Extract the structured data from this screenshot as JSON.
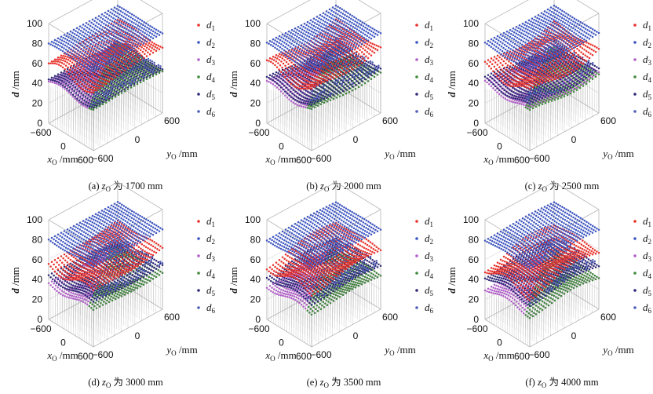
{
  "figure": {
    "panels": [
      {
        "label": "(a)",
        "z_text": "为 1700 mm",
        "z_value": 1700
      },
      {
        "label": "(b)",
        "z_text": "为 2000 mm",
        "z_value": 2000
      },
      {
        "label": "(c)",
        "z_text": "为 2500 mm",
        "z_value": 2500
      },
      {
        "label": "(d)",
        "z_text": "为 3000 mm",
        "z_value": 3000
      },
      {
        "label": "(e)",
        "z_text": "为 3500 mm",
        "z_value": 3500
      },
      {
        "label": "(f)",
        "z_text": "为 4000 mm",
        "z_value": 4000
      }
    ],
    "z_var": "z",
    "z_sub": "O"
  },
  "chart_data": {
    "type": "scatter",
    "plot": "3d",
    "x_axis": {
      "var": "x",
      "sub": "O",
      "unit": "/mm",
      "ticks": [
        "−600",
        "0",
        "600"
      ],
      "range": [
        -600,
        600
      ]
    },
    "y_axis": {
      "var": "y",
      "sub": "O",
      "unit": "/mm",
      "ticks": [
        "−600",
        "0",
        "600"
      ],
      "range": [
        -600,
        600
      ]
    },
    "z_axis": {
      "var": "d",
      "unit": "/mm",
      "ticks": [
        "0",
        "20",
        "40",
        "60",
        "80",
        "100"
      ],
      "range": [
        0,
        100
      ]
    },
    "legend": [
      {
        "name": "d",
        "sub": "1",
        "color": "#e8312a"
      },
      {
        "name": "d",
        "sub": "2",
        "color": "#3d55c0"
      },
      {
        "name": "d",
        "sub": "3",
        "color": "#b05ec8"
      },
      {
        "name": "d",
        "sub": "4",
        "color": "#3f8a3a"
      },
      {
        "name": "d",
        "sub": "5",
        "color": "#2f2a78"
      },
      {
        "name": "d",
        "sub": "6",
        "color": "#4f5fb8"
      }
    ],
    "approx_series_levels_mm": {
      "z1700": {
        "d1": 63,
        "d2": 80,
        "d3": 42,
        "d4": 42,
        "d5": 44,
        "d6": 46
      },
      "z2000": {
        "d1": 62,
        "d2": 80,
        "d3": 40,
        "d4": 40,
        "d5": 44,
        "d6": 46
      },
      "z2500": {
        "d1": 60,
        "d2": 80,
        "d3": 40,
        "d4": 38,
        "d5": 44,
        "d6": 46
      },
      "z3000": {
        "d1": 58,
        "d2": 80,
        "d3": 36,
        "d4": 36,
        "d5": 44,
        "d6": 46
      },
      "z3500": {
        "d1": 57,
        "d2": 80,
        "d3": 34,
        "d4": 34,
        "d5": 44,
        "d6": 46
      },
      "z4000": {
        "d1": 55,
        "d2": 80,
        "d3": 32,
        "d4": 32,
        "d5": 44,
        "d6": 46
      }
    }
  }
}
